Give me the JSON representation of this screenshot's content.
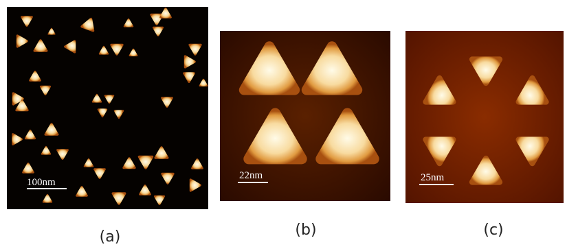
{
  "panels": [
    {
      "scale_bar": "100nm",
      "caption": "(a)"
    },
    {
      "scale_bar": "22nm",
      "caption": "(b)"
    },
    {
      "scale_bar": "25nm",
      "caption": "(c)"
    }
  ]
}
